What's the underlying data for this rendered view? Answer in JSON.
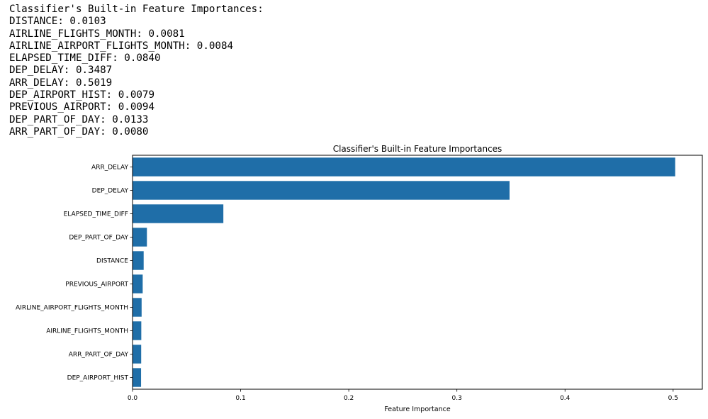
{
  "console": {
    "heading": "Classifier's Built-in Feature Importances:",
    "lines": [
      "DISTANCE: 0.0103",
      "AIRLINE_FLIGHTS_MONTH: 0.0081",
      "AIRLINE_AIRPORT_FLIGHTS_MONTH: 0.0084",
      "ELAPSED_TIME_DIFF: 0.0840",
      "DEP_DELAY: 0.3487",
      "ARR_DELAY: 0.5019",
      "DEP_AIRPORT_HIST: 0.0079",
      "PREVIOUS_AIRPORT: 0.0094",
      "DEP_PART_OF_DAY: 0.0133",
      "ARR_PART_OF_DAY: 0.0080"
    ]
  },
  "chart_data": {
    "type": "bar",
    "orientation": "horizontal",
    "title": "Classifier's Built-in Feature Importances",
    "xlabel": "Feature Importance",
    "ylabel": "",
    "categories": [
      "ARR_DELAY",
      "DEP_DELAY",
      "ELAPSED_TIME_DIFF",
      "DEP_PART_OF_DAY",
      "DISTANCE",
      "PREVIOUS_AIRPORT",
      "AIRLINE_AIRPORT_FLIGHTS_MONTH",
      "AIRLINE_FLIGHTS_MONTH",
      "ARR_PART_OF_DAY",
      "DEP_AIRPORT_HIST"
    ],
    "values": [
      0.5019,
      0.3487,
      0.084,
      0.0133,
      0.0103,
      0.0094,
      0.0084,
      0.0081,
      0.008,
      0.0079
    ],
    "xlim": [
      0,
      0.527
    ],
    "xticks": [
      0.0,
      0.1,
      0.2,
      0.3,
      0.4,
      0.5
    ],
    "xtick_labels": [
      "0.0",
      "0.1",
      "0.2",
      "0.3",
      "0.4",
      "0.5"
    ],
    "bar_color": "#1f6ea8",
    "grid": false
  }
}
